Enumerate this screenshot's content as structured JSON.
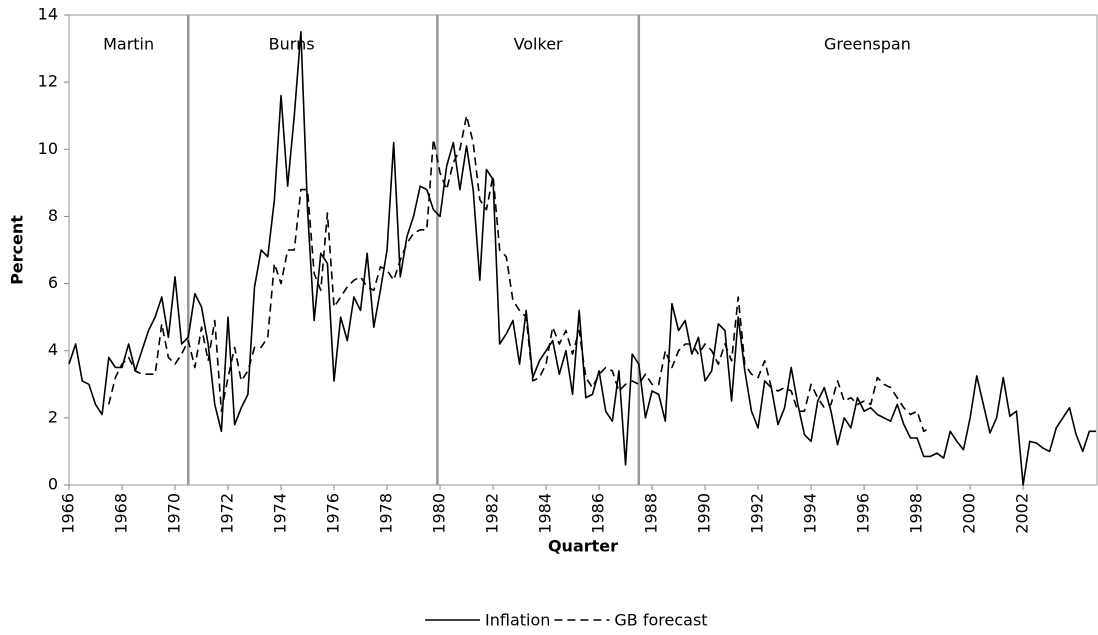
{
  "chart_data": {
    "type": "line",
    "x_label": "Quarter",
    "y_label": "Percent",
    "x": [
      1966,
      1966.25,
      1966.5,
      1966.75,
      1967,
      1967.25,
      1967.5,
      1967.75,
      1968,
      1968.25,
      1968.5,
      1968.75,
      1969,
      1969.25,
      1969.5,
      1969.75,
      1970,
      1970.25,
      1970.5,
      1970.75,
      1971,
      1971.25,
      1971.5,
      1971.75,
      1972,
      1972.25,
      1972.5,
      1972.75,
      1973,
      1973.25,
      1973.5,
      1973.75,
      1974,
      1974.25,
      1974.5,
      1974.75,
      1975,
      1975.25,
      1975.5,
      1975.75,
      1976,
      1976.25,
      1976.5,
      1976.75,
      1977,
      1977.25,
      1977.5,
      1977.75,
      1978,
      1978.25,
      1978.5,
      1978.75,
      1979,
      1979.25,
      1979.5,
      1979.75,
      1980,
      1980.25,
      1980.5,
      1980.75,
      1981,
      1981.25,
      1981.5,
      1981.75,
      1982,
      1982.25,
      1982.5,
      1982.75,
      1983,
      1983.25,
      1983.5,
      1983.75,
      1984,
      1984.25,
      1984.5,
      1984.75,
      1985,
      1985.25,
      1985.5,
      1985.75,
      1986,
      1986.25,
      1986.5,
      1986.75,
      1987,
      1987.25,
      1987.5,
      1987.75,
      1988,
      1988.25,
      1988.5,
      1988.75,
      1989,
      1989.25,
      1989.5,
      1989.75,
      1990,
      1990.25,
      1990.5,
      1990.75,
      1991,
      1991.25,
      1991.5,
      1991.75,
      1992,
      1992.25,
      1992.5,
      1992.75,
      1993,
      1993.25,
      1993.5,
      1993.75,
      1994,
      1994.25,
      1994.5,
      1994.75,
      1995,
      1995.25,
      1995.5,
      1995.75,
      1996,
      1996.25,
      1996.5,
      1996.75,
      1997,
      1997.25,
      1997.5,
      1997.75,
      1998,
      1998.25,
      1998.5,
      1998.75,
      1999,
      1999.25,
      1999.5,
      1999.75,
      2000,
      2000.25,
      2000.5,
      2000.75,
      2001,
      2001.25,
      2001.5,
      2001.75,
      2002,
      2002.25,
      2002.5,
      2002.75,
      2003,
      2003.25,
      2003.5,
      2003.75,
      2004,
      2004.25,
      2004.5,
      2004.75
    ],
    "series": [
      {
        "name": "Inflation",
        "color": "#000000",
        "dash": "solid",
        "values": [
          3.6,
          4.2,
          3.1,
          3.0,
          2.4,
          2.1,
          3.8,
          3.5,
          3.5,
          4.2,
          3.4,
          4.0,
          4.6,
          5.0,
          5.6,
          4.4,
          6.2,
          4.2,
          4.4,
          5.7,
          5.3,
          4.2,
          2.4,
          1.6,
          5.0,
          1.8,
          2.3,
          2.7,
          5.9,
          7.0,
          6.8,
          8.5,
          11.6,
          8.9,
          11.0,
          13.5,
          8.2,
          4.9,
          6.9,
          6.6,
          3.1,
          5.0,
          4.3,
          5.6,
          5.2,
          6.9,
          4.7,
          5.8,
          7.0,
          10.2,
          6.2,
          7.4,
          8.0,
          8.9,
          8.8,
          8.2,
          8.0,
          9.5,
          10.2,
          8.8,
          10.1,
          8.8,
          6.1,
          9.4,
          9.1,
          4.2,
          4.5,
          4.9,
          3.6,
          5.2,
          3.2,
          3.7,
          4.0,
          4.3,
          3.3,
          4.0,
          2.7,
          5.2,
          2.6,
          2.7,
          3.4,
          2.2,
          1.9,
          3.4,
          0.6,
          3.9,
          3.6,
          2.0,
          2.8,
          2.7,
          1.9,
          5.4,
          4.6,
          4.9,
          3.9,
          4.4,
          3.1,
          3.4,
          4.8,
          4.6,
          2.5,
          5.0,
          3.4,
          2.2,
          1.7,
          3.1,
          2.9,
          1.8,
          2.3,
          3.5,
          2.4,
          1.5,
          1.3,
          2.5,
          2.9,
          2.2,
          1.2,
          2.0,
          1.7,
          2.6,
          2.2,
          2.3,
          2.1,
          2.0,
          1.9,
          2.4,
          1.8,
          1.4,
          1.4,
          0.85,
          0.85,
          0.95,
          0.8,
          1.6,
          1.3,
          1.05,
          2.0,
          3.25,
          2.4,
          1.55,
          2.0,
          3.2,
          2.05,
          2.2,
          0.0,
          1.3,
          1.25,
          1.1,
          1.0,
          1.7,
          2.0,
          2.3,
          1.5,
          1.0,
          1.6,
          1.6
        ]
      },
      {
        "name": "GB forecast",
        "color": "#000000",
        "dash": "dashed",
        "values": [
          null,
          null,
          null,
          null,
          null,
          null,
          2.4,
          3.2,
          3.6,
          3.8,
          3.4,
          3.3,
          3.3,
          3.3,
          4.8,
          3.8,
          3.6,
          3.9,
          4.3,
          3.5,
          4.7,
          3.7,
          4.9,
          2.2,
          3.2,
          4.1,
          3.1,
          3.4,
          4.1,
          4.1,
          4.4,
          6.6,
          6.0,
          7.0,
          7.0,
          8.8,
          8.8,
          6.3,
          5.8,
          8.1,
          5.3,
          5.6,
          5.9,
          6.1,
          6.2,
          5.9,
          5.8,
          6.5,
          6.4,
          6.1,
          6.7,
          7.2,
          7.5,
          7.6,
          7.6,
          10.3,
          9.3,
          8.8,
          9.6,
          10.0,
          11.0,
          10.2,
          8.5,
          8.2,
          9.2,
          7.0,
          6.8,
          5.5,
          5.2,
          5.0,
          3.1,
          3.2,
          3.6,
          4.7,
          4.2,
          4.6,
          3.9,
          4.6,
          3.2,
          2.9,
          3.3,
          3.5,
          3.4,
          2.8,
          3.0,
          3.1,
          3.0,
          3.3,
          3.0,
          3.0,
          4.0,
          3.5,
          4.0,
          4.2,
          4.2,
          3.9,
          4.2,
          4.0,
          3.6,
          4.2,
          3.7,
          5.6,
          3.6,
          3.3,
          3.2,
          3.7,
          2.9,
          2.8,
          2.9,
          2.8,
          2.2,
          2.2,
          3.0,
          2.6,
          2.3,
          2.4,
          3.1,
          2.5,
          2.6,
          2.4,
          2.5,
          2.4,
          3.2,
          3.0,
          2.9,
          2.6,
          2.3,
          2.1,
          2.2,
          1.6,
          1.7,
          null,
          null,
          null,
          null,
          null,
          null,
          null,
          null,
          null,
          null,
          null,
          null,
          null,
          null,
          null,
          null,
          null,
          null,
          null,
          null,
          null,
          null,
          null,
          null,
          null
        ]
      }
    ],
    "eras": [
      {
        "label": "Martin",
        "start": 1966,
        "end": 1970.5
      },
      {
        "label": "Burns",
        "start": 1970.5,
        "end": 1978.3
      },
      {
        "label": "Volker",
        "start": 1979.9,
        "end": 1987.5
      },
      {
        "label": "Greenspan",
        "start": 1987.5,
        "end": 2004.75
      }
    ],
    "xlim": [
      1966,
      2004.75
    ],
    "ylim": [
      0,
      14
    ],
    "xticks": [
      1966,
      1968,
      1970,
      1972,
      1974,
      1976,
      1978,
      1980,
      1982,
      1984,
      1986,
      1988,
      1990,
      1992,
      1994,
      1996,
      1998,
      2000,
      2002
    ],
    "yticks": [
      0,
      2,
      4,
      6,
      8,
      10,
      12,
      14
    ],
    "legend": "bottom"
  }
}
